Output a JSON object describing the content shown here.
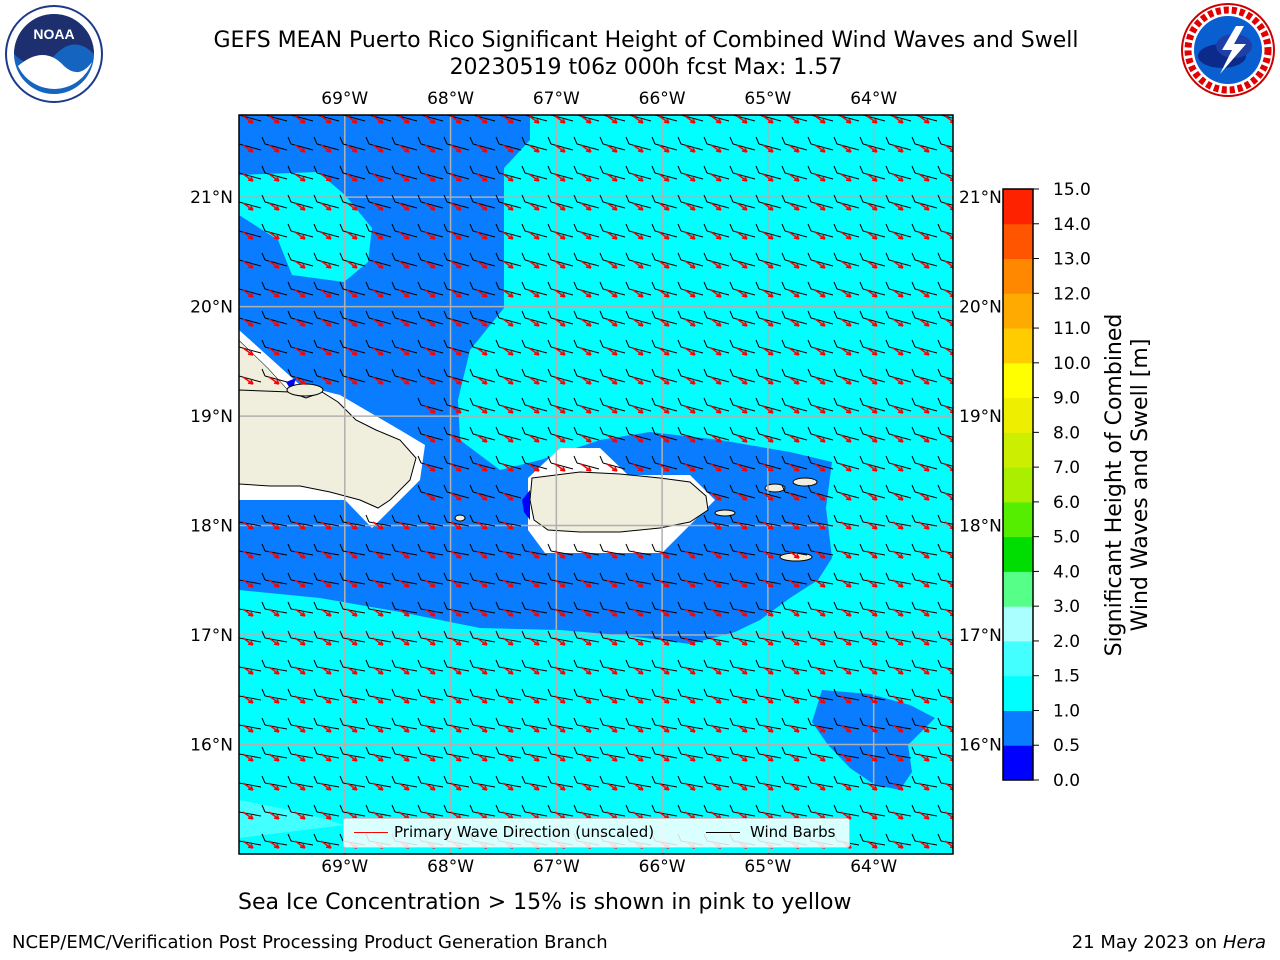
{
  "title": {
    "line1": "GEFS MEAN Puerto Rico Significant Height of Combined Wind Waves and Swell",
    "line2": "20230519 t06z 000h fcst   Max: 1.57"
  },
  "logos": {
    "left": {
      "icon": "noaa-logo-icon",
      "text": "NOAA"
    },
    "right": {
      "icon": "national-weather-service-logo-icon"
    }
  },
  "map": {
    "lon_range": [
      -70.0,
      -63.25
    ],
    "lat_range": [
      15.0,
      21.75
    ],
    "lon_ticks": [
      {
        "value": -69,
        "label": "69°W"
      },
      {
        "value": -68,
        "label": "68°W"
      },
      {
        "value": -67,
        "label": "67°W"
      },
      {
        "value": -66,
        "label": "66°W"
      },
      {
        "value": -65,
        "label": "65°W"
      },
      {
        "value": -64,
        "label": "64°W"
      }
    ],
    "lat_ticks": [
      {
        "value": 21,
        "label": "21°N"
      },
      {
        "value": 20,
        "label": "20°N"
      },
      {
        "value": 19,
        "label": "19°N"
      },
      {
        "value": 18,
        "label": "18°N"
      },
      {
        "value": 17,
        "label": "17°N"
      },
      {
        "value": 16,
        "label": "16°N"
      }
    ],
    "colors": {
      "ocean_cyan": "#00ffff",
      "ocean_blue": "#0a7cff",
      "land": "#f0eedc",
      "grid": "#b0b0b0",
      "wave_arrow": "#ff0000",
      "barb": "#000000"
    }
  },
  "colorbar": {
    "label_line1": "Significant Height of Combined",
    "label_line2": "Wind Waves and Swell [m]",
    "ticks": [
      "0.0",
      "0.5",
      "1.0",
      "1.5",
      "2.0",
      "3.0",
      "4.0",
      "5.0",
      "6.0",
      "7.0",
      "8.0",
      "9.0",
      "10.0",
      "11.0",
      "12.0",
      "13.0",
      "14.0",
      "15.0"
    ],
    "colors": [
      "#0000ff",
      "#0a7cff",
      "#00ffff",
      "#44ffff",
      "#aaffff",
      "#55ff88",
      "#00dd00",
      "#55ee00",
      "#aaee00",
      "#ccee00",
      "#eeee00",
      "#ffff00",
      "#ffcc00",
      "#ffaa00",
      "#ff8800",
      "#ff5500",
      "#ff2200"
    ]
  },
  "legend": {
    "wave": "Primary Wave Direction (unscaled)",
    "barb": "Wind Barbs"
  },
  "note": "Sea Ice Concentration > 15% is shown in pink to yellow",
  "footer": {
    "left": "NCEP/EMC/Verification Post Processing Product Generation Branch",
    "right_date": "21 May 2023 on",
    "right_host": "Hera"
  }
}
